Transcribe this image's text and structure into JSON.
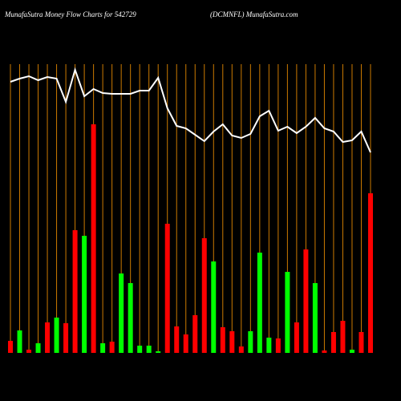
{
  "chart_data": {
    "type": "moneyflow",
    "title": "MunafaSutra  Money Flow  Charts for 542729",
    "subtitle": "(DCMNFL) MunafaSutra.com",
    "categories": [
      null,
      null,
      null,
      null,
      null,
      null,
      null,
      null,
      null,
      null,
      null,
      null,
      null,
      null,
      null,
      null,
      null,
      null,
      null,
      null,
      null,
      null,
      null,
      null,
      null,
      null,
      null,
      null,
      null,
      null,
      null,
      null,
      null,
      null,
      null,
      null,
      null,
      null,
      null,
      null
    ],
    "values": [
      15,
      28,
      4,
      12,
      38,
      44,
      37,
      153,
      146,
      285,
      12,
      14,
      99,
      87,
      9,
      9,
      2,
      161,
      33,
      23,
      47,
      143,
      114,
      32,
      27,
      8,
      27,
      125,
      19,
      18,
      101,
      38,
      129,
      87,
      3,
      26,
      40,
      4,
      26,
      199
    ],
    "colors": [
      "#ff0000",
      "#00ff00",
      "#ff0000",
      "#00ff00",
      "#ff0000",
      "#00ff00",
      "#ff0000",
      "#ff0000",
      "#00ff00",
      "#ff0000",
      "#00ff00",
      "#ff0000",
      "#00ff00",
      "#00ff00",
      "#00ff00",
      "#00ff00",
      "#00ff00",
      "#ff0000",
      "#ff0000",
      "#ff0000",
      "#ff0000",
      "#ff0000",
      "#00ff00",
      "#ff0000",
      "#ff0000",
      "#ff0000",
      "#00ff00",
      "#00ff00",
      "#00ff00",
      "#ff0000",
      "#00ff00",
      "#ff0000",
      "#ff0000",
      "#00ff00",
      "#ff0000",
      "#ff0000",
      "#ff0000",
      "#00ff00",
      "#ff0000",
      "#ff0000"
    ],
    "line": {
      "color": "#ffffff",
      "values": [
        338,
        342,
        345,
        340,
        344,
        342,
        313,
        353,
        320,
        329,
        324,
        323,
        323,
        323,
        327,
        327,
        343,
        305,
        283,
        280,
        272,
        264,
        276,
        285,
        271,
        268,
        273,
        295,
        302,
        277,
        282,
        274,
        282,
        293,
        280,
        276,
        263,
        265,
        276,
        250
      ]
    },
    "grid_color": "#cc7a00"
  }
}
